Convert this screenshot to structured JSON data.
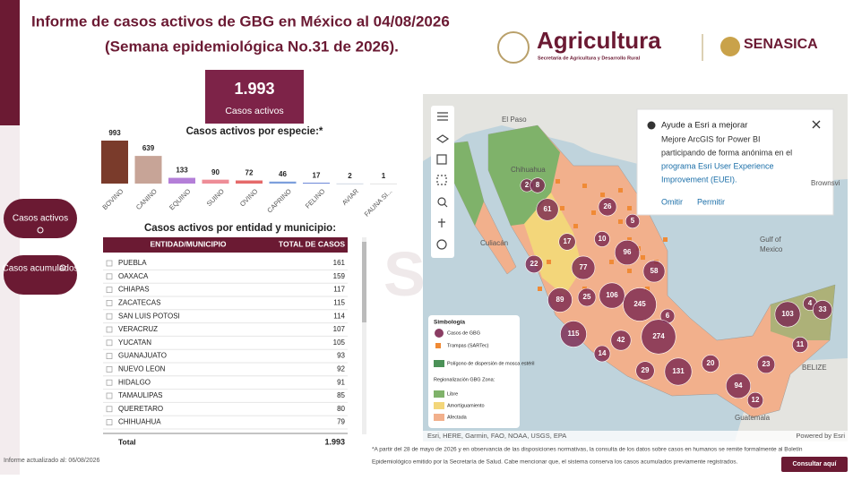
{
  "header": {
    "title_line1": "Informe de casos activos de GBG en México al 04/08/2026",
    "title_line2": "(Semana epidemiológica No.31 de 2026).",
    "brand": "Agricultura",
    "brand_sub": "Secretaría de Agricultura y Desarrollo Rural",
    "brand2": "SENASICA"
  },
  "kpi": {
    "value": "1.993",
    "label": "Casos activos"
  },
  "chart_data": {
    "type": "bar",
    "title": "Casos activos por especie:*",
    "categories": [
      "BOVINO",
      "CANINO",
      "EQUINO",
      "SUINO",
      "OVINO",
      "CAPRINO",
      "FELINO",
      "AVIAR",
      "FAUNA SI..."
    ],
    "values": [
      993,
      639,
      133,
      90,
      72,
      46,
      17,
      2,
      1
    ],
    "colors": [
      "#7a3b2b",
      "#c7a497",
      "#b47fd8",
      "#ee8d97",
      "#e56a6a",
      "#7c9fdc",
      "#4f70cf",
      "#9fb0c4",
      "#c9c9c9"
    ]
  },
  "buttons": [
    "Casos activos",
    "Casos acumulados"
  ],
  "table": {
    "title": "Casos activos por entidad y municipio:",
    "header": [
      "ENTIDAD/MUNICIPIO",
      "TOTAL DE CASOS"
    ],
    "rows": [
      [
        "PUEBLA",
        161
      ],
      [
        "OAXACA",
        159
      ],
      [
        "CHIAPAS",
        117
      ],
      [
        "ZACATECAS",
        115
      ],
      [
        "SAN LUIS POTOSI",
        114
      ],
      [
        "VERACRUZ",
        107
      ],
      [
        "YUCATAN",
        105
      ],
      [
        "GUANAJUATO",
        93
      ],
      [
        "NUEVO LEON",
        92
      ],
      [
        "HIDALGO",
        91
      ],
      [
        "TAMAULIPAS",
        85
      ],
      [
        "QUERETARO",
        80
      ],
      [
        "CHIHUAHUA",
        79
      ]
    ],
    "total": [
      "Total",
      "1.993"
    ]
  },
  "map": {
    "cases": [
      2,
      8,
      61,
      26,
      5,
      17,
      10,
      96,
      22,
      77,
      58,
      25,
      106,
      245,
      89,
      6,
      115,
      42,
      274,
      103,
      4,
      33,
      11,
      29,
      131,
      20,
      23,
      94,
      12,
      14
    ],
    "places": [
      "El Paso",
      "Chihuahua",
      "Culiacán",
      "Gulf of",
      "Mexico",
      "BELIZE",
      "Guatemala",
      "Brownsvi"
    ],
    "legend": {
      "title": "Simbología",
      "items": [
        "Casos de GBG",
        "Trampas (SARTec)",
        "Polígono de dispersión de mosca estéril"
      ],
      "zone_title": "Regionalización GBG Zona:",
      "zones": [
        "Libre",
        "Amortiguamiento",
        "Afectada"
      ]
    },
    "popup": {
      "title": "Ayude a Esri a mejorar",
      "lines": [
        "Mejore ArcGIS for Power BI",
        "participando de forma anónima en el",
        "programa Esri User Experience",
        "Improvement (EUEI)."
      ],
      "actions": [
        "Omitir",
        "Permitir"
      ]
    },
    "attribution": "Esri, HERE, Garmin, FAO, NOAA, USGS, EPA",
    "powered": "Powered by Esri"
  },
  "footer": {
    "updated": "Informe actualizado al: 06/08/2026",
    "note": [
      "*A partir del 28 de mayo de 2026 y en observancia de las disposiciones normativas, la consulta de los datos sobre casos en humanos se remite formalmente al Boletín",
      "Epidemiológico emitido por la Secretaría de Salud. Cabe mencionar que, el sistema conserva los casos acumulados previamente registrados."
    ],
    "link": "Consultar aquí"
  }
}
